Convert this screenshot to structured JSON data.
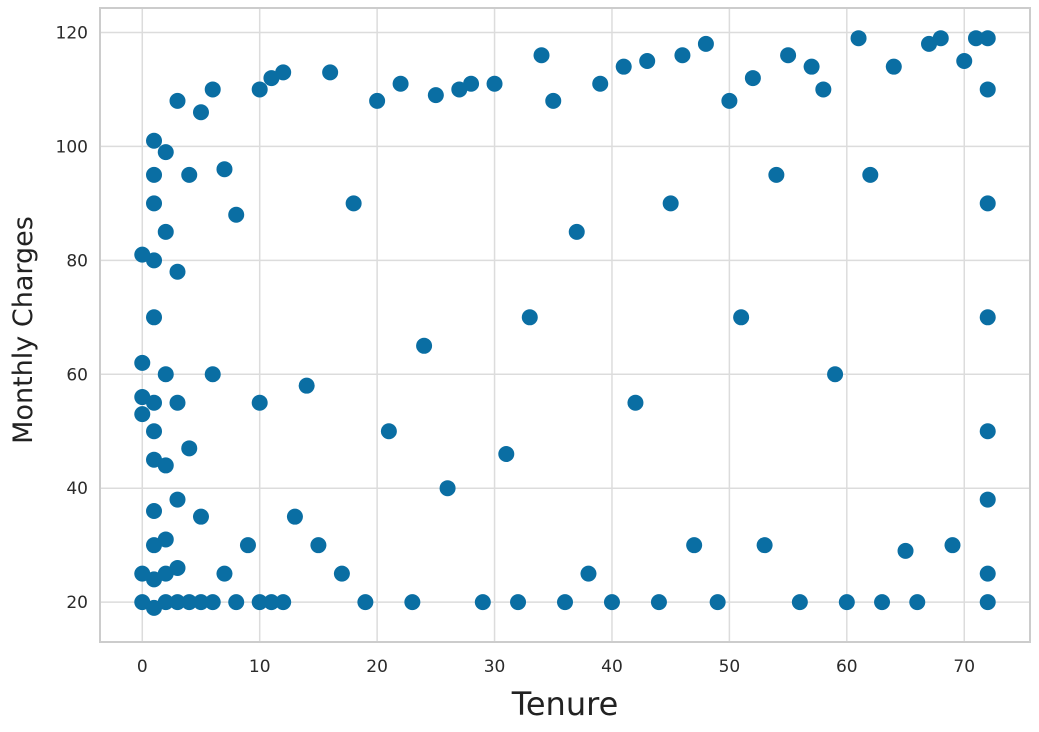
{
  "chart_data": {
    "type": "scatter",
    "xlabel": "Tenure",
    "ylabel": "Monthly Charges",
    "xlim": [
      -3.6,
      75.6
    ],
    "ylim": [
      13.0,
      124.3
    ],
    "xticks": [
      0,
      10,
      20,
      30,
      40,
      50,
      60,
      70
    ],
    "yticks": [
      20,
      40,
      60,
      80,
      100,
      120
    ],
    "grid": true,
    "colors": {
      "points": "#0a6ea3",
      "grid": "#dcdcdc",
      "frame": "#cccccc"
    },
    "series": [
      {
        "points_note": "approx. samples",
        "x": [
          0,
          0,
          0,
          0,
          0,
          0,
          1,
          1,
          1,
          1,
          1,
          1,
          1,
          1,
          1,
          1,
          1,
          1,
          2,
          2,
          2,
          2,
          2,
          2,
          2,
          3,
          3,
          3,
          3,
          3,
          3,
          4,
          4,
          4,
          5,
          5,
          5,
          6,
          6,
          6,
          7,
          7,
          8,
          8,
          9,
          10,
          10,
          10,
          11,
          11,
          12,
          12,
          13,
          14,
          15,
          16,
          17,
          18,
          19,
          20,
          21,
          22,
          23,
          24,
          25,
          26,
          27,
          28,
          29,
          30,
          31,
          32,
          33,
          34,
          35,
          36,
          37,
          38,
          39,
          40,
          41,
          42,
          43,
          44,
          45,
          46,
          47,
          48,
          49,
          50,
          51,
          52,
          53,
          54,
          55,
          56,
          57,
          58,
          59,
          60,
          61,
          62,
          63,
          64,
          65,
          66,
          67,
          68,
          69,
          70,
          71,
          72,
          72,
          72,
          72,
          72,
          72,
          72,
          72
        ],
        "y": [
          20,
          25,
          53,
          56,
          62,
          81,
          19,
          24,
          30,
          36,
          45,
          50,
          55,
          70,
          80,
          90,
          95,
          101,
          20,
          25,
          31,
          44,
          60,
          85,
          99,
          20,
          26,
          38,
          55,
          78,
          108,
          20,
          47,
          95,
          20,
          35,
          106,
          20,
          60,
          110,
          25,
          96,
          20,
          88,
          30,
          20,
          55,
          110,
          20,
          112,
          20,
          113,
          35,
          58,
          30,
          113,
          25,
          90,
          20,
          108,
          50,
          111,
          20,
          65,
          109,
          40,
          110,
          111,
          20,
          111,
          46,
          20,
          70,
          116,
          108,
          20,
          85,
          25,
          111,
          20,
          114,
          55,
          115,
          20,
          90,
          116,
          30,
          118,
          20,
          108,
          70,
          112,
          30,
          95,
          116,
          20,
          114,
          110,
          60,
          20,
          119,
          95,
          20,
          114,
          29,
          20,
          118,
          119,
          30,
          115,
          119,
          20,
          25,
          38,
          50,
          70,
          90,
          110,
          119
        ]
      }
    ]
  }
}
